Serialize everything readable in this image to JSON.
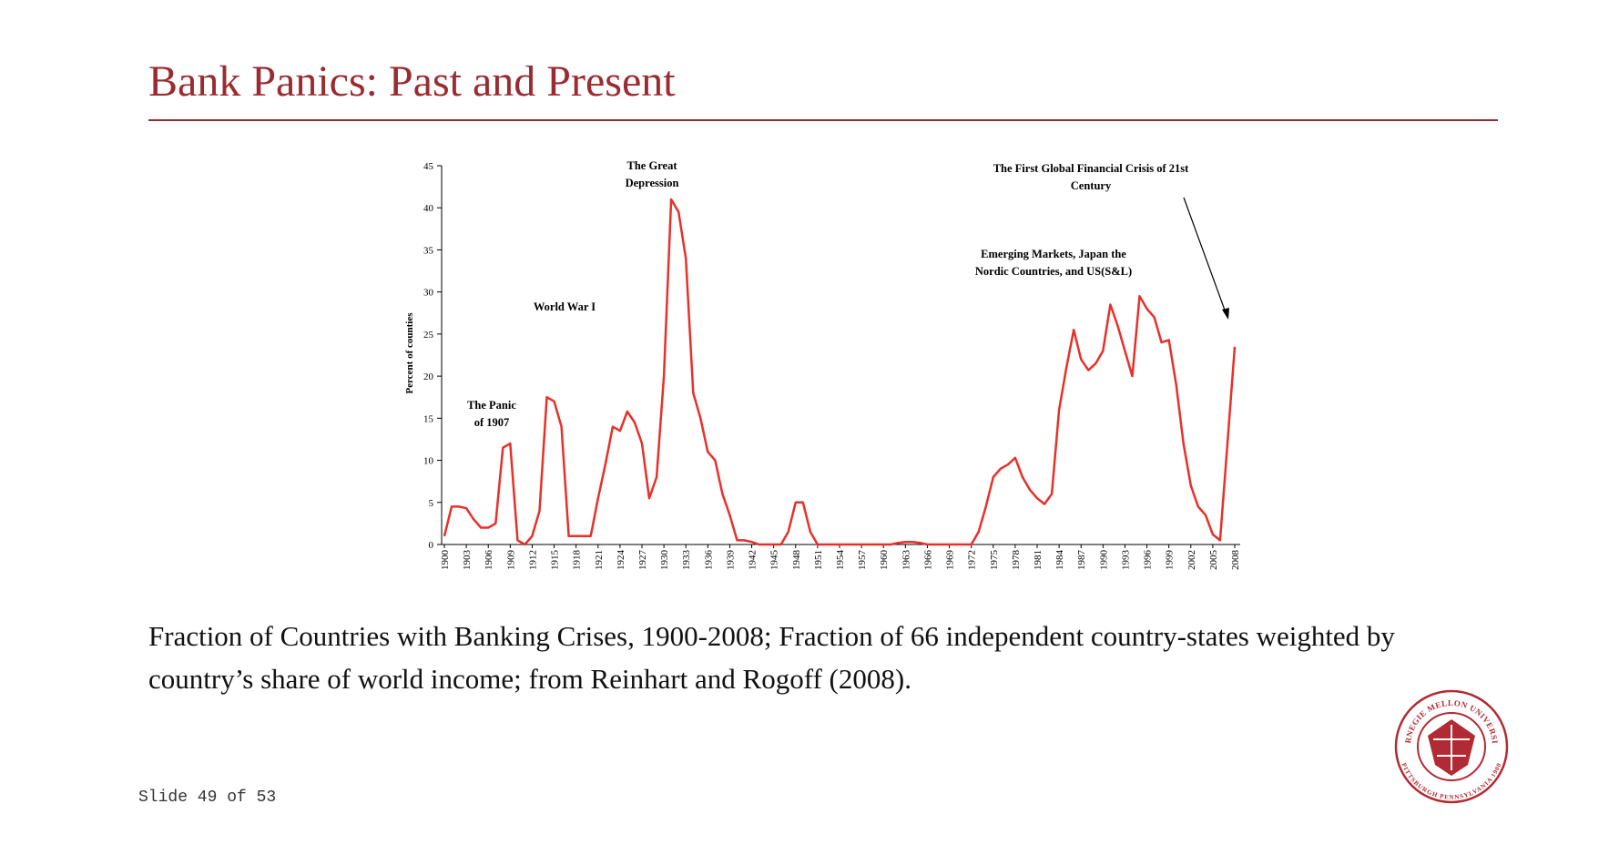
{
  "title": "Bank Panics: Past and Present",
  "chart_data": {
    "type": "line",
    "y_label": "Percent of counties",
    "color": "#e8302a",
    "x": [
      1900,
      1901,
      1902,
      1903,
      1904,
      1905,
      1906,
      1907,
      1908,
      1909,
      1910,
      1911,
      1912,
      1913,
      1914,
      1915,
      1916,
      1917,
      1918,
      1919,
      1920,
      1921,
      1922,
      1923,
      1924,
      1925,
      1926,
      1927,
      1928,
      1929,
      1930,
      1931,
      1932,
      1933,
      1934,
      1935,
      1936,
      1937,
      1938,
      1939,
      1940,
      1941,
      1942,
      1943,
      1944,
      1945,
      1946,
      1947,
      1948,
      1949,
      1950,
      1951,
      1952,
      1953,
      1954,
      1955,
      1956,
      1957,
      1958,
      1959,
      1960,
      1961,
      1962,
      1963,
      1964,
      1965,
      1966,
      1967,
      1968,
      1969,
      1970,
      1971,
      1972,
      1973,
      1974,
      1975,
      1976,
      1977,
      1978,
      1979,
      1980,
      1981,
      1982,
      1983,
      1984,
      1985,
      1986,
      1987,
      1988,
      1989,
      1990,
      1991,
      1992,
      1993,
      1994,
      1995,
      1996,
      1997,
      1998,
      1999,
      2000,
      2001,
      2002,
      2003,
      2004,
      2005,
      2006,
      2007,
      2008
    ],
    "values": [
      1,
      4.5,
      4.5,
      4.3,
      3,
      2,
      2,
      2.5,
      11.5,
      12,
      0.5,
      0,
      1,
      4,
      17.5,
      17,
      14,
      1,
      1,
      1,
      1,
      5.5,
      9.5,
      14,
      13.5,
      15.8,
      14.5,
      12,
      5.5,
      8,
      20,
      41,
      39.5,
      34,
      18,
      15,
      11,
      10,
      6,
      3.5,
      0.5,
      0.5,
      0.3,
      0,
      0,
      0,
      0,
      1.5,
      5,
      5,
      1.5,
      0,
      0,
      0,
      0,
      0,
      0,
      0,
      0,
      0,
      0,
      0,
      0.2,
      0.3,
      0.3,
      0.2,
      0,
      0,
      0,
      0,
      0,
      0,
      0,
      1.5,
      4.5,
      8,
      9,
      9.5,
      10.3,
      8,
      6.5,
      5.5,
      4.8,
      6,
      16,
      21,
      25.5,
      22,
      20.7,
      21.5,
      23,
      28.5,
      26,
      23,
      20,
      29.5,
      28,
      27,
      24,
      24.3,
      19,
      12,
      7,
      4.5,
      3.5,
      1.2,
      0.5,
      12,
      23.5
    ],
    "xlim": [
      1900,
      2008
    ],
    "xticks": [
      1900,
      1903,
      1906,
      1909,
      1912,
      1915,
      1918,
      1921,
      1924,
      1927,
      1930,
      1933,
      1936,
      1939,
      1942,
      1945,
      1948,
      1951,
      1954,
      1957,
      1960,
      1963,
      1966,
      1969,
      1972,
      1975,
      1978,
      1981,
      1984,
      1987,
      1990,
      1993,
      1996,
      1999,
      2002,
      2005,
      2008
    ],
    "ylim": [
      0,
      45
    ],
    "yticks": [
      0,
      5,
      10,
      15,
      20,
      25,
      30,
      35,
      40,
      45
    ],
    "annotations": [
      {
        "lines": [
          "The Panic",
          "of 1907"
        ]
      },
      {
        "lines": [
          "World War I"
        ]
      },
      {
        "lines": [
          "The Great",
          "Depression"
        ]
      },
      {
        "lines": [
          "Emerging Markets, Japan the",
          "Nordic Countries, and US(S&L)"
        ]
      },
      {
        "lines": [
          "The First Global Financial Crisis of 21st",
          "Century"
        ]
      }
    ]
  },
  "caption": "Fraction of Countries with Banking Crises, 1900-2008; Fraction of 66 independent country-states weighted by country’s share of world income; from Reinhart and Rogoff (2008).",
  "logo": {
    "top": "CARNEGIE MELLON UNIVERSITY",
    "bottom": "PITTSBURGH PENNSYLVANIA 1900"
  },
  "slide_number": "Slide 49 of 53"
}
